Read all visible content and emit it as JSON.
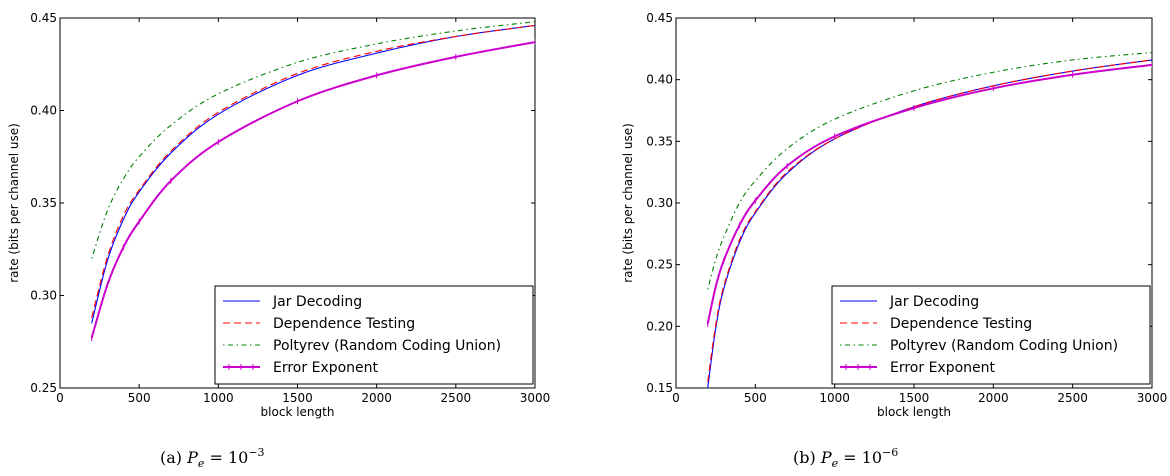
{
  "chart_data": [
    {
      "type": "line",
      "caption": "(a) P_e = 10^{-3}",
      "caption_parts": {
        "prefix": "(a)",
        "var": "P",
        "sub": "e",
        "eq": "= 10",
        "exp": "−3"
      },
      "xlabel": "block length",
      "ylabel": "rate (bits per channel use)",
      "xlim": [
        0,
        3000
      ],
      "ylim": [
        0.25,
        0.45
      ],
      "xticks": [
        0,
        500,
        1000,
        1500,
        2000,
        2500,
        3000
      ],
      "yticks": [
        0.25,
        0.3,
        0.35,
        0.4,
        0.45
      ],
      "ytick_labels": [
        "0.25",
        "0.30",
        "0.35",
        "0.40",
        "0.45"
      ],
      "legend_position": "lower-right",
      "grid": false,
      "series": [
        {
          "name": "Jar Decoding",
          "color": "#0000ff",
          "style": "solid",
          "x": [
            200,
            300,
            400,
            500,
            700,
            1000,
            1500,
            2000,
            2500,
            3000
          ],
          "y": [
            0.285,
            0.319,
            0.341,
            0.356,
            0.377,
            0.398,
            0.419,
            0.431,
            0.44,
            0.446
          ]
        },
        {
          "name": "Dependence Testing",
          "color": "#ff0000",
          "style": "dashed",
          "x": [
            200,
            300,
            400,
            500,
            700,
            1000,
            1500,
            2000,
            2500,
            3000
          ],
          "y": [
            0.288,
            0.321,
            0.343,
            0.357,
            0.378,
            0.399,
            0.42,
            0.432,
            0.44,
            0.446
          ]
        },
        {
          "name": "Poltyrev (Random Coding Union)",
          "color": "#008000",
          "style": "dashdot",
          "x": [
            200,
            300,
            400,
            500,
            700,
            1000,
            1500,
            2000,
            2500,
            3000
          ],
          "y": [
            0.32,
            0.346,
            0.363,
            0.375,
            0.392,
            0.409,
            0.426,
            0.436,
            0.443,
            0.448
          ]
        },
        {
          "name": "Error Exponent",
          "color": "#cc00cc",
          "style": "solid-marked",
          "x": [
            200,
            300,
            400,
            500,
            700,
            1000,
            1500,
            2000,
            2500,
            3000
          ],
          "y": [
            0.277,
            0.306,
            0.326,
            0.34,
            0.362,
            0.383,
            0.405,
            0.419,
            0.429,
            0.437
          ]
        }
      ]
    },
    {
      "type": "line",
      "caption": "(b) P_e = 10^{-6}",
      "caption_parts": {
        "prefix": "(b)",
        "var": "P",
        "sub": "e",
        "eq": "= 10",
        "exp": "−6"
      },
      "xlabel": "block length",
      "ylabel": "rate (bits per channel use)",
      "xlim": [
        0,
        3000
      ],
      "ylim": [
        0.15,
        0.45
      ],
      "xticks": [
        0,
        500,
        1000,
        1500,
        2000,
        2500,
        3000
      ],
      "yticks": [
        0.15,
        0.2,
        0.25,
        0.3,
        0.35,
        0.4,
        0.45
      ],
      "ytick_labels": [
        "0.15",
        "0.20",
        "0.25",
        "0.30",
        "0.35",
        "0.40",
        "0.45"
      ],
      "legend_position": "lower-right",
      "grid": false,
      "series": [
        {
          "name": "Jar Decoding",
          "color": "#0000ff",
          "style": "solid",
          "x": [
            200,
            250,
            300,
            400,
            500,
            700,
            1000,
            1500,
            2000,
            2500,
            3000
          ],
          "y": [
            0.15,
            0.198,
            0.23,
            0.268,
            0.292,
            0.324,
            0.352,
            0.378,
            0.395,
            0.407,
            0.416
          ]
        },
        {
          "name": "Dependence Testing",
          "color": "#ff0000",
          "style": "dashed",
          "x": [
            200,
            250,
            300,
            400,
            500,
            700,
            1000,
            1500,
            2000,
            2500,
            3000
          ],
          "y": [
            0.155,
            0.201,
            0.232,
            0.27,
            0.293,
            0.325,
            0.352,
            0.378,
            0.395,
            0.407,
            0.416
          ]
        },
        {
          "name": "Poltyrev (Random Coding Union)",
          "color": "#008000",
          "style": "dashdot",
          "x": [
            200,
            250,
            300,
            400,
            500,
            700,
            1000,
            1500,
            2000,
            2500,
            3000
          ],
          "y": [
            0.23,
            0.254,
            0.272,
            0.3,
            0.318,
            0.344,
            0.368,
            0.391,
            0.406,
            0.416,
            0.422
          ]
        },
        {
          "name": "Error Exponent",
          "color": "#cc00cc",
          "style": "solid-marked",
          "x": [
            200,
            250,
            300,
            400,
            500,
            700,
            1000,
            1500,
            2000,
            2500,
            3000
          ],
          "y": [
            0.202,
            0.232,
            0.253,
            0.282,
            0.302,
            0.33,
            0.354,
            0.377,
            0.393,
            0.404,
            0.412
          ]
        }
      ]
    }
  ]
}
